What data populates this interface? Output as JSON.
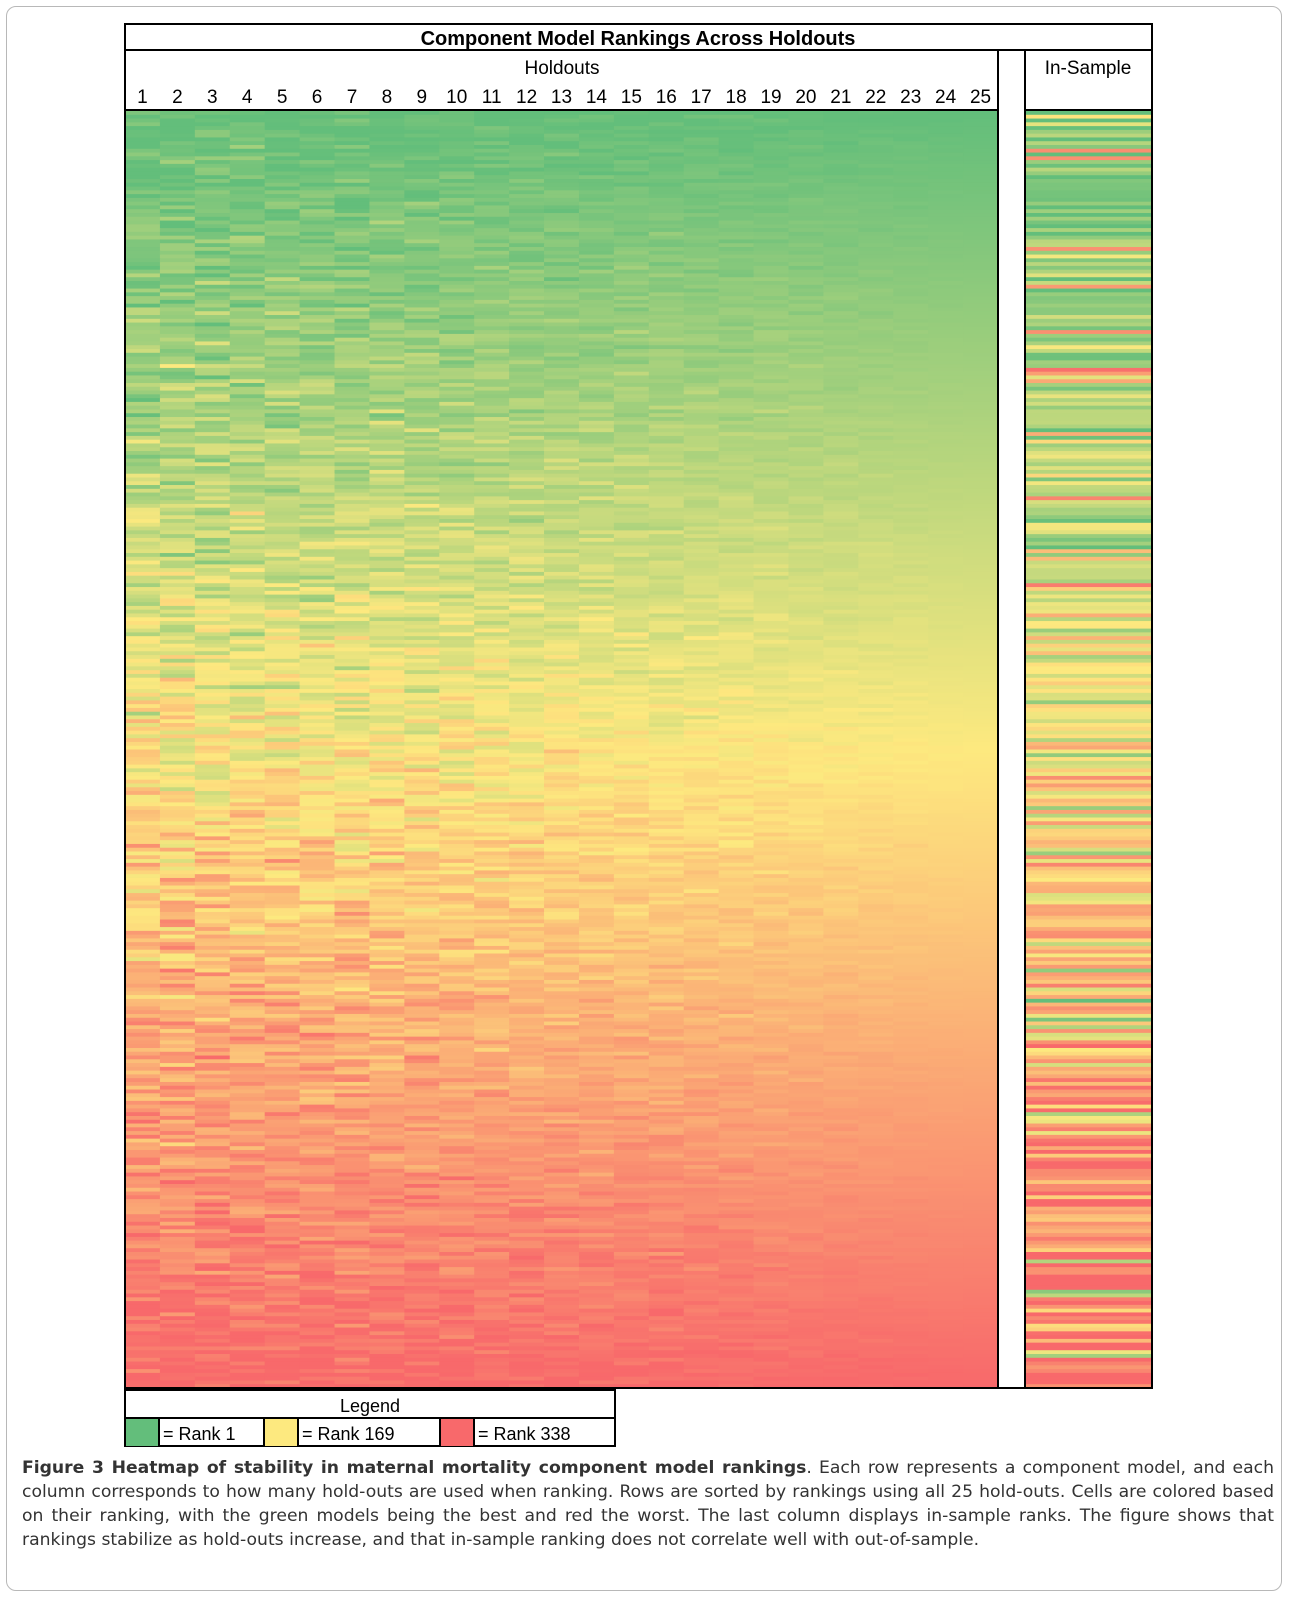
{
  "chart_data": {
    "type": "heatmap",
    "title": "Component Model Rankings Across Holdouts",
    "columns_header": "Holdouts",
    "columns": [
      "1",
      "2",
      "3",
      "4",
      "5",
      "6",
      "7",
      "8",
      "9",
      "10",
      "11",
      "12",
      "13",
      "14",
      "15",
      "16",
      "17",
      "18",
      "19",
      "20",
      "21",
      "22",
      "23",
      "24",
      "25"
    ],
    "insample_header": "In-Sample",
    "n_rows": 338,
    "rank_range": [
      1,
      338
    ],
    "row_sort": "rank using all 25 hold-outs",
    "color_scale": {
      "low": "#63be7b",
      "mid": "#fde97f",
      "high": "#f8696b"
    },
    "legend": {
      "title": "Legend",
      "items": [
        {
          "label": "= Rank 1",
          "rank": 1,
          "color": "#63be7b"
        },
        {
          "label": "= Rank 169",
          "rank": 169,
          "color": "#fde97f"
        },
        {
          "label": "= Rank 338",
          "rank": 338,
          "color": "#f8696b"
        }
      ]
    }
  },
  "caption": {
    "label": "Figure 3 Heatmap of stability in maternal mortality component model rankings",
    "text": ". Each row represents a component model, and each column corresponds to how many hold-outs are used when ranking. Rows are sorted by rankings using all 25 hold-outs. Cells are colored based on their ranking, with the green models being the best and red the worst. The last column displays in-sample ranks. The figure shows that rankings stabilize as hold-outs increase, and that in-sample ranking does not correlate well with out-of-sample."
  }
}
